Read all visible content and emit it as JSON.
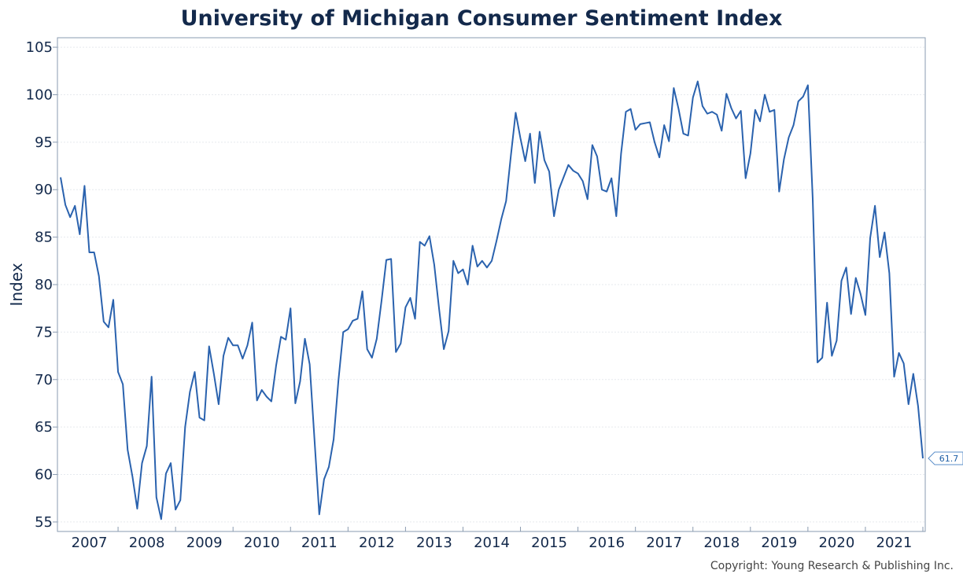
{
  "chart_data": {
    "type": "line",
    "title": "University of Michigan Consumer Sentiment Index",
    "xlabel": "",
    "ylabel": "Index",
    "ylim": [
      54,
      106
    ],
    "y_ticks": [
      55,
      60,
      65,
      70,
      75,
      80,
      85,
      90,
      95,
      100,
      105
    ],
    "x_tick_labels": [
      "2007",
      "2008",
      "2009",
      "2010",
      "2011",
      "2012",
      "2013",
      "2014",
      "2015",
      "2016",
      "2017",
      "2018",
      "2019",
      "2020",
      "2021"
    ],
    "grid": true,
    "series": [
      {
        "name": "",
        "color": "#2a62ae",
        "x_start": "2007-01",
        "frequency": "monthly",
        "values": [
          91.3,
          88.4,
          87.1,
          88.3,
          85.3,
          90.4,
          83.4,
          83.4,
          80.9,
          76.1,
          75.5,
          78.4,
          70.8,
          69.5,
          62.6,
          59.8,
          56.4,
          61.2,
          63.0,
          70.3,
          57.6,
          55.3,
          60.1,
          61.2,
          56.3,
          57.3,
          65.0,
          68.7,
          70.8,
          66.0,
          65.7,
          73.5,
          70.6,
          67.4,
          72.5,
          74.4,
          73.6,
          73.6,
          72.2,
          73.6,
          76.0,
          67.8,
          68.9,
          68.2,
          67.7,
          71.5,
          74.5,
          74.2,
          77.5,
          67.5,
          69.8,
          74.3,
          71.6,
          63.7,
          55.8,
          59.5,
          60.8,
          63.7,
          69.9,
          75.0,
          75.3,
          76.2,
          76.4,
          79.3,
          73.2,
          72.3,
          74.3,
          78.3,
          82.6,
          82.7,
          72.9,
          73.8,
          77.6,
          78.6,
          76.4,
          84.5,
          84.1,
          85.1,
          82.1,
          77.5,
          73.2,
          75.1,
          82.5,
          81.2,
          81.6,
          80.0,
          84.1,
          81.9,
          82.5,
          81.8,
          82.5,
          84.6,
          86.9,
          88.8,
          93.6,
          98.1,
          95.4,
          93.0,
          95.9,
          90.7,
          96.1,
          93.1,
          91.9,
          87.2,
          90.0,
          91.3,
          92.6,
          92.0,
          91.7,
          90.9,
          89.0,
          94.7,
          93.5,
          90.0,
          89.8,
          91.2,
          87.2,
          93.8,
          98.2,
          98.5,
          96.3,
          96.9,
          97.0,
          97.1,
          95.0,
          93.4,
          96.8,
          95.1,
          100.7,
          98.5,
          95.9,
          95.7,
          99.7,
          101.4,
          98.8,
          98.0,
          98.2,
          97.9,
          96.2,
          100.1,
          98.6,
          97.5,
          98.3,
          91.2,
          93.8,
          98.4,
          97.2,
          100.0,
          98.2,
          98.4,
          89.8,
          93.2,
          95.5,
          96.8,
          99.3,
          99.8,
          101.0,
          89.1,
          71.8,
          72.3,
          78.1,
          72.5,
          74.1,
          80.4,
          81.8,
          76.9,
          80.7,
          79.0,
          76.8,
          84.9,
          88.3,
          82.9,
          85.5,
          81.2,
          70.3,
          72.8,
          71.7,
          67.4,
          70.6,
          67.2,
          61.7
        ]
      }
    ],
    "last_value_label": "61.7",
    "copyright": "Copyright: Young Research & Publishing Inc."
  }
}
